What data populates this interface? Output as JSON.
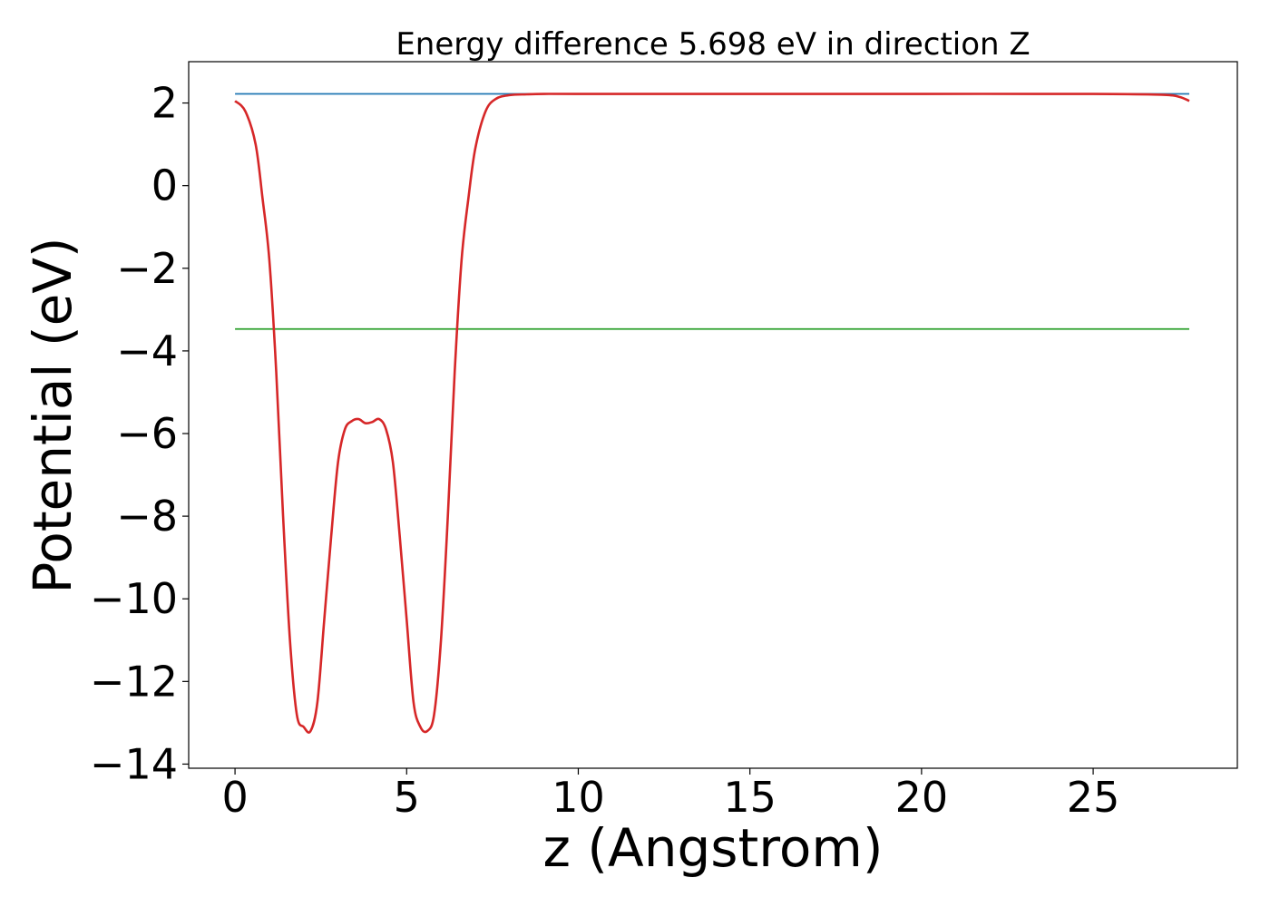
{
  "chart_data": {
    "type": "line",
    "title": "Energy difference 5.698 eV in direction Z",
    "xlabel": "z (Angstrom)",
    "ylabel": "Potential (eV)",
    "xlim": [
      -1.35,
      29.2
    ],
    "ylim": [
      -14.1,
      3.0
    ],
    "x_ticks": [
      0,
      5,
      10,
      15,
      20,
      25
    ],
    "x_tick_labels": [
      "0",
      "5",
      "10",
      "15",
      "20",
      "25"
    ],
    "y_ticks": [
      2,
      0,
      -2,
      -4,
      -6,
      -8,
      -10,
      -12,
      -14
    ],
    "y_tick_labels": [
      "2",
      "0",
      "−2",
      "−4",
      "−6",
      "−8",
      "−10",
      "−12",
      "−14"
    ],
    "grid": false,
    "legend": "none",
    "series": [
      {
        "color": "#1f77b4",
        "x": [
          0,
          27.8
        ],
        "y": [
          2.22,
          2.22
        ]
      },
      {
        "color": "#2ca02c",
        "x": [
          0,
          27.8
        ],
        "y": [
          -3.47,
          -3.47
        ]
      },
      {
        "color": "#d62728",
        "x": [
          0,
          0.3,
          0.6,
          0.8,
          1.0,
          1.2,
          1.4,
          1.6,
          1.8,
          2.0,
          2.2,
          2.4,
          2.6,
          2.8,
          3.0,
          3.2,
          3.4,
          3.6,
          3.8,
          4.0,
          4.2,
          4.4,
          4.6,
          4.8,
          5.0,
          5.2,
          5.4,
          5.6,
          5.8,
          6.0,
          6.2,
          6.4,
          6.6,
          6.8,
          7.0,
          7.3,
          7.6,
          8.0,
          8.5,
          9.0,
          10,
          15,
          20,
          25,
          27.0,
          27.5,
          27.8
        ],
        "y": [
          2.05,
          1.8,
          1.0,
          -0.3,
          -1.8,
          -4.5,
          -8.0,
          -11.0,
          -12.8,
          -13.1,
          -13.2,
          -12.5,
          -10.5,
          -8.5,
          -6.7,
          -5.9,
          -5.7,
          -5.65,
          -5.75,
          -5.72,
          -5.65,
          -5.9,
          -6.7,
          -8.5,
          -10.5,
          -12.5,
          -13.1,
          -13.2,
          -12.8,
          -11.0,
          -8.0,
          -4.5,
          -1.8,
          -0.3,
          0.9,
          1.8,
          2.1,
          2.19,
          2.21,
          2.22,
          2.22,
          2.22,
          2.22,
          2.22,
          2.2,
          2.15,
          2.05
        ]
      }
    ]
  }
}
